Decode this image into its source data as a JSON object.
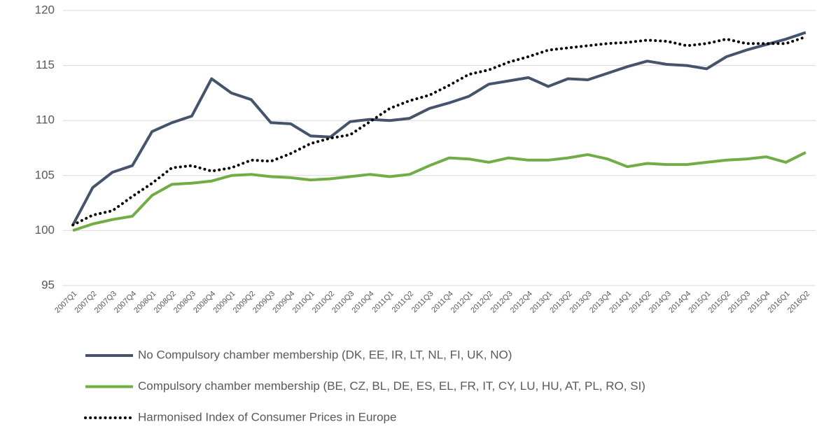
{
  "chart_data": {
    "type": "line",
    "categories": [
      "2007Q1",
      "2007Q2",
      "2007Q3",
      "2007Q4",
      "2008Q1",
      "2008Q2",
      "2008Q3",
      "2008Q4",
      "2009Q1",
      "2009Q2",
      "2009Q3",
      "2009Q4",
      "2010Q1",
      "2010Q2",
      "2010Q3",
      "2010Q4",
      "2011Q1",
      "2011Q2",
      "2011Q3",
      "2011Q4",
      "2012Q1",
      "2012Q2",
      "2012Q3",
      "2012Q4",
      "2013Q1",
      "2013Q2",
      "2013Q3",
      "2013Q4",
      "2014Q1",
      "2014Q2",
      "2014Q3",
      "2014Q4",
      "2015Q1",
      "2015Q2",
      "2015Q3",
      "2015Q4",
      "2016Q1",
      "2016Q2"
    ],
    "series": [
      {
        "name": "No Compulsory chamber membership (DK, EE, IR, LT, NL, FI, UK, NO)",
        "color": "#44546a",
        "style": "solid",
        "values": [
          100.5,
          103.9,
          105.3,
          105.9,
          109.0,
          109.8,
          110.4,
          113.8,
          112.5,
          111.9,
          109.8,
          109.7,
          108.6,
          108.5,
          109.9,
          110.1,
          110.0,
          110.2,
          111.1,
          111.6,
          112.2,
          113.3,
          113.6,
          113.9,
          113.1,
          113.8,
          113.7,
          114.3,
          114.9,
          115.4,
          115.1,
          115.0,
          114.7,
          115.8,
          116.4,
          116.9,
          117.4,
          118.0
        ]
      },
      {
        "name": "Compulsory chamber membership (BE, CZ, BL, DE, ES, EL, FR, IT, CY, LU, HU, AT, PL, RO, SI)",
        "color": "#70ad47",
        "style": "solid",
        "values": [
          100.0,
          100.6,
          101.0,
          101.3,
          103.2,
          104.2,
          104.3,
          104.5,
          105.0,
          105.1,
          104.9,
          104.8,
          104.6,
          104.7,
          104.9,
          105.1,
          104.9,
          105.1,
          105.9,
          106.6,
          106.5,
          106.2,
          106.6,
          106.4,
          106.4,
          106.6,
          106.9,
          106.5,
          105.8,
          106.1,
          106.0,
          106.0,
          106.2,
          106.4,
          106.5,
          106.7,
          106.2,
          107.1
        ]
      },
      {
        "name": "Harmonised Index of Consumer Prices in Europe",
        "color": "#000000",
        "style": "dotted",
        "values": [
          100.5,
          101.4,
          101.8,
          103.1,
          104.3,
          105.7,
          105.9,
          105.4,
          105.7,
          106.4,
          106.3,
          107.0,
          107.9,
          108.4,
          108.7,
          109.9,
          111.1,
          111.8,
          112.3,
          113.2,
          114.2,
          114.6,
          115.3,
          115.8,
          116.4,
          116.6,
          116.8,
          117.0,
          117.1,
          117.3,
          117.2,
          116.8,
          117.0,
          117.4,
          117.0,
          117.0,
          117.0,
          117.6
        ]
      }
    ],
    "ylim": [
      95,
      120
    ],
    "yticks": [
      95,
      100,
      105,
      110,
      115,
      120
    ],
    "grid": true
  }
}
